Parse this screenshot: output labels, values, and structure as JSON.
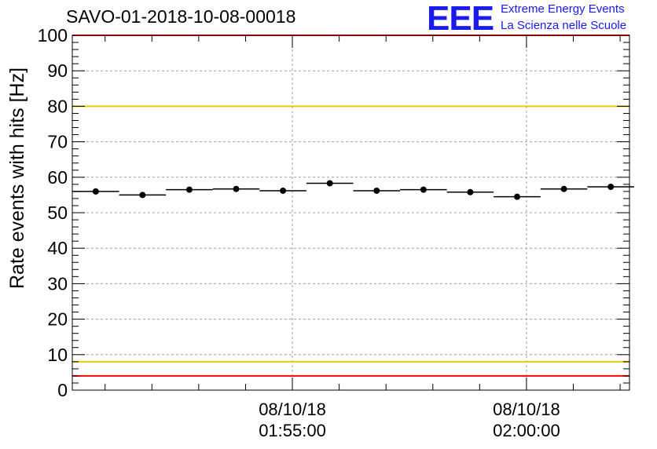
{
  "header": {
    "title": "SAVO-01-2018-10-08-00018",
    "logo_text": "EEE",
    "logo_line1": "Extreme Energy Events",
    "logo_line2": "La Scienza nelle Scuole"
  },
  "chart_data": {
    "type": "scatter",
    "title": "SAVO-01-2018-10-08-00018",
    "xlabel": "",
    "ylabel": "Rate events with hits [Hz]",
    "ylim": [
      0,
      100
    ],
    "yticks": [
      0,
      10,
      20,
      30,
      40,
      50,
      60,
      70,
      80,
      90,
      100
    ],
    "x_unit": "minutes relative to 08/10/18 01:55:00",
    "xlim": [
      -4.7,
      7.2
    ],
    "xtick_labels": [
      {
        "x": 0,
        "date": "08/10/18",
        "time": "01:55:00"
      },
      {
        "x": 5,
        "date": "08/10/18",
        "time": "02:00:00"
      }
    ],
    "bin_width_min": 1,
    "series": [
      {
        "name": "Rate",
        "x": [
          -4.2,
          -3.2,
          -2.2,
          -1.2,
          -0.2,
          0.8,
          1.8,
          2.8,
          3.8,
          4.8,
          5.8,
          6.8
        ],
        "values": [
          56.0,
          55.0,
          56.5,
          56.7,
          56.2,
          58.3,
          56.2,
          56.5,
          55.8,
          54.5,
          56.7,
          57.3
        ],
        "color": "#000000"
      }
    ],
    "reference_lines": [
      {
        "y": 80,
        "color": "#f0c800"
      },
      {
        "y": 8,
        "color": "#f0c800"
      },
      {
        "y": 100,
        "color": "#ff0000"
      },
      {
        "y": 4,
        "color": "#ff0000"
      }
    ],
    "grid": true
  }
}
